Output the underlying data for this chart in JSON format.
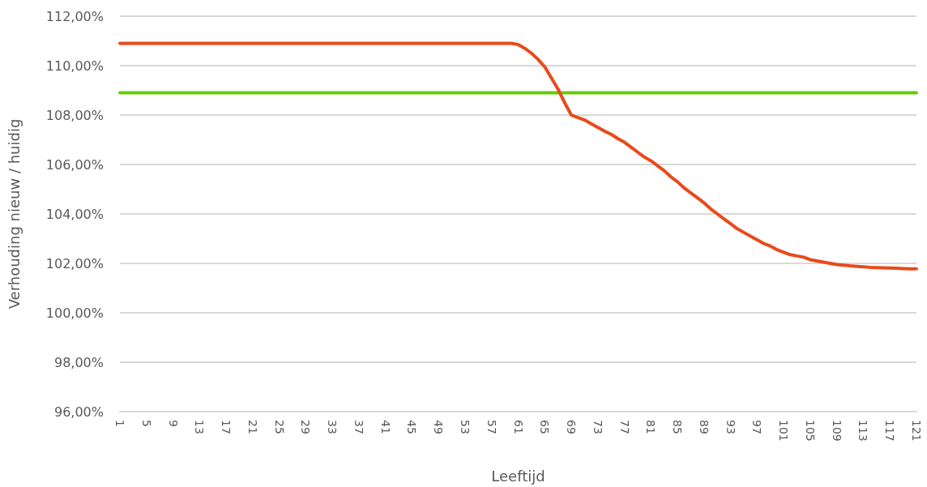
{
  "chart_data": {
    "type": "line",
    "xlabel": "Leeftijd",
    "ylabel": "Verhouding nieuw / huidig",
    "categories": [
      "1",
      null,
      null,
      null,
      "5",
      null,
      null,
      null,
      "9",
      null,
      null,
      null,
      "13",
      null,
      null,
      null,
      "17",
      null,
      null,
      null,
      "21",
      null,
      null,
      null,
      "25",
      null,
      null,
      null,
      "29",
      null,
      null,
      null,
      "33",
      null,
      null,
      null,
      "37",
      null,
      null,
      null,
      "41",
      null,
      null,
      null,
      "45",
      null,
      null,
      null,
      "49",
      null,
      null,
      null,
      "53",
      null,
      null,
      null,
      "57",
      null,
      null,
      null,
      "61",
      null,
      null,
      null,
      "65",
      null,
      null,
      null,
      "69",
      null,
      null,
      null,
      "73",
      null,
      null,
      null,
      "77",
      null,
      null,
      null,
      "81",
      null,
      null,
      null,
      "85",
      null,
      null,
      null,
      "89",
      null,
      null,
      null,
      "93",
      null,
      null,
      null,
      "97",
      null,
      null,
      null,
      "101",
      null,
      null,
      null,
      "105",
      null,
      null,
      null,
      "109",
      null,
      null,
      null,
      "113",
      null,
      null,
      null,
      "117",
      null,
      null,
      null,
      "121"
    ],
    "series": [
      {
        "color": "#e84a1b",
        "values": [
          110.9,
          110.9,
          110.9,
          110.9,
          110.9,
          110.9,
          110.9,
          110.9,
          110.9,
          110.9,
          110.9,
          110.9,
          110.9,
          110.9,
          110.9,
          110.9,
          110.9,
          110.9,
          110.9,
          110.9,
          110.9,
          110.9,
          110.9,
          110.9,
          110.9,
          110.9,
          110.9,
          110.9,
          110.9,
          110.9,
          110.9,
          110.9,
          110.9,
          110.9,
          110.9,
          110.9,
          110.9,
          110.9,
          110.9,
          110.9,
          110.9,
          110.9,
          110.9,
          110.9,
          110.9,
          110.9,
          110.9,
          110.9,
          110.9,
          110.9,
          110.9,
          110.9,
          110.9,
          110.9,
          110.9,
          110.9,
          110.9,
          110.9,
          110.9,
          110.9,
          110.85,
          110.7,
          110.5,
          110.25,
          109.95,
          109.5,
          109.05,
          108.5,
          108.0,
          107.9,
          107.8,
          107.65,
          107.5,
          107.35,
          107.22,
          107.05,
          106.9,
          106.7,
          106.5,
          106.3,
          106.15,
          105.95,
          105.75,
          105.5,
          105.3,
          105.05,
          104.85,
          104.65,
          104.45,
          104.2,
          104.0,
          103.8,
          103.6,
          103.4,
          103.25,
          103.1,
          102.95,
          102.8,
          102.7,
          102.55,
          102.45,
          102.35,
          102.3,
          102.25,
          102.15,
          102.1,
          102.05,
          102.0,
          101.95,
          101.93,
          101.9,
          101.88,
          101.86,
          101.84,
          101.83,
          101.82,
          101.81,
          101.8,
          101.79,
          101.78,
          101.78
        ]
      },
      {
        "color": "#66cc00",
        "values": [
          108.9,
          108.9,
          108.9,
          108.9,
          108.9,
          108.9,
          108.9,
          108.9,
          108.9,
          108.9,
          108.9,
          108.9,
          108.9,
          108.9,
          108.9,
          108.9,
          108.9,
          108.9,
          108.9,
          108.9,
          108.9,
          108.9,
          108.9,
          108.9,
          108.9,
          108.9,
          108.9,
          108.9,
          108.9,
          108.9,
          108.9,
          108.9,
          108.9,
          108.9,
          108.9,
          108.9,
          108.9,
          108.9,
          108.9,
          108.9,
          108.9,
          108.9,
          108.9,
          108.9,
          108.9,
          108.9,
          108.9,
          108.9,
          108.9,
          108.9,
          108.9,
          108.9,
          108.9,
          108.9,
          108.9,
          108.9,
          108.9,
          108.9,
          108.9,
          108.9,
          108.9,
          108.9,
          108.9,
          108.9,
          108.9,
          108.9,
          108.9,
          108.9,
          108.9,
          108.9,
          108.9,
          108.9,
          108.9,
          108.9,
          108.9,
          108.9,
          108.9,
          108.9,
          108.9,
          108.9,
          108.9,
          108.9,
          108.9,
          108.9,
          108.9,
          108.9,
          108.9,
          108.9,
          108.9,
          108.9,
          108.9,
          108.9,
          108.9,
          108.9,
          108.9,
          108.9,
          108.9,
          108.9,
          108.9,
          108.9,
          108.9,
          108.9,
          108.9,
          108.9,
          108.9,
          108.9,
          108.9,
          108.9,
          108.9,
          108.9,
          108.9,
          108.9,
          108.9,
          108.9,
          108.9,
          108.9,
          108.9,
          108.9,
          108.9,
          108.9,
          108.9
        ]
      }
    ],
    "ylim": [
      96,
      112
    ],
    "yticks": [
      {
        "value": 96,
        "label": "96,00%"
      },
      {
        "value": 98,
        "label": "98,00%"
      },
      {
        "value": 100,
        "label": "100,00%"
      },
      {
        "value": 102,
        "label": "102,00%"
      },
      {
        "value": 104,
        "label": "104,00%"
      },
      {
        "value": 106,
        "label": "106,00%"
      },
      {
        "value": 108,
        "label": "108,00%"
      },
      {
        "value": 110,
        "label": "110,00%"
      },
      {
        "value": 112,
        "label": "112,00%"
      }
    ],
    "grid": "y",
    "marker": "none",
    "line_style": "solid"
  }
}
